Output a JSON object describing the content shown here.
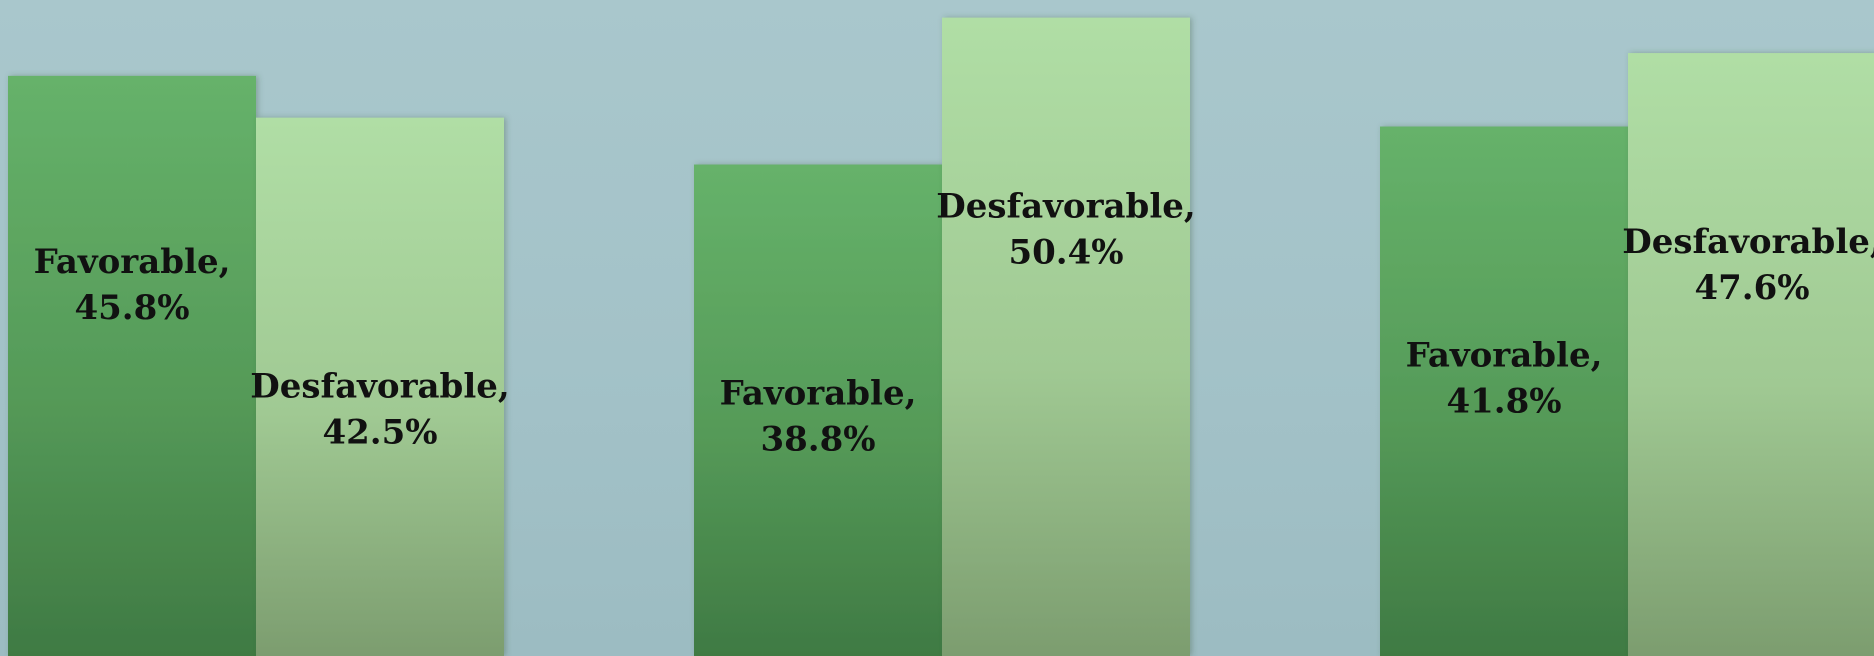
{
  "chart_data": {
    "type": "bar",
    "groups": [
      {
        "bars": [
          {
            "label": "Favorable,",
            "value": 45.8,
            "value_text": "45.8%"
          },
          {
            "label": "Desfavorable,",
            "value": 42.5,
            "value_text": "42.5%"
          }
        ]
      },
      {
        "bars": [
          {
            "label": "Favorable,",
            "value": 38.8,
            "value_text": "38.8%"
          },
          {
            "label": "Desfavorable,",
            "value": 50.4,
            "value_text": "50.4%"
          }
        ]
      },
      {
        "bars": [
          {
            "label": "Favorable,",
            "value": 41.8,
            "value_text": "41.8%"
          },
          {
            "label": "Desfavorable,",
            "value": 47.6,
            "value_text": "47.6%"
          }
        ]
      }
    ],
    "series": [
      {
        "name": "Favorable",
        "color": "#56a15c"
      },
      {
        "name": "Desfavorable",
        "color": "#a9d9a0"
      }
    ],
    "ylim": [
      0,
      51
    ],
    "grid": false,
    "legend": "none"
  }
}
